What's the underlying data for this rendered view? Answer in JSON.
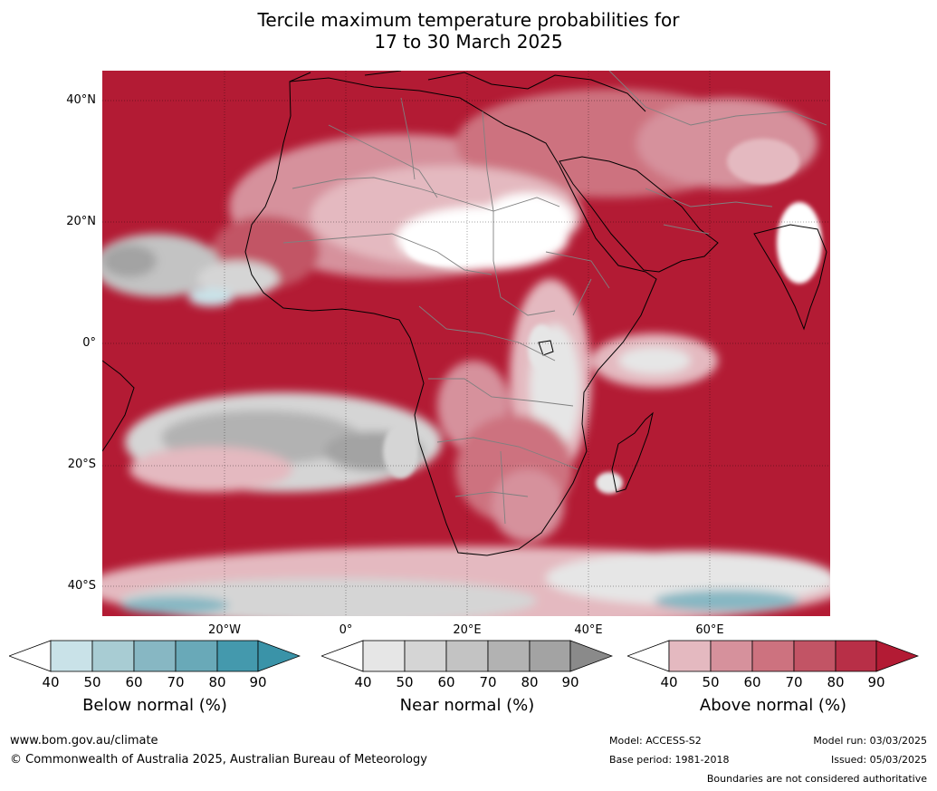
{
  "title": {
    "line1": "Tercile maximum temperature probabilities for",
    "line2": "17 to 30 March 2025"
  },
  "map": {
    "lat_labels": [
      "40°N",
      "20°N",
      "0°",
      "20°S",
      "40°S"
    ],
    "lon_labels": [
      "20°W",
      "0°",
      "20°E",
      "40°E",
      "60°E"
    ],
    "ocean_color": "#b31b34",
    "land_outline_color": "#000000",
    "border_color": "#808080"
  },
  "colorbars": [
    {
      "title": "Below normal (%)",
      "ticks": [
        "40",
        "50",
        "60",
        "70",
        "80",
        "90"
      ],
      "colors": [
        "#c9e2e8",
        "#a8ccd3",
        "#87b7c3",
        "#69a9b8",
        "#4499ad",
        "#3a93a8"
      ]
    },
    {
      "title": "Near normal (%)",
      "ticks": [
        "40",
        "50",
        "60",
        "70",
        "80",
        "90"
      ],
      "colors": [
        "#e6e6e6",
        "#d5d5d5",
        "#c3c3c3",
        "#b2b2b2",
        "#a3a3a3",
        "#8a8a8a"
      ]
    },
    {
      "title": "Above normal (%)",
      "ticks": [
        "40",
        "50",
        "60",
        "70",
        "80",
        "90"
      ],
      "colors": [
        "#e4b9c0",
        "#d6919c",
        "#cd727f",
        "#c25465",
        "#b82f47",
        "#b31b34"
      ]
    }
  ],
  "footer": {
    "website": "www.bom.gov.au/climate",
    "copyright": "© Commonwealth of Australia 2025, Australian Bureau of Meteorology",
    "model": "Model: ACCESS-S2",
    "base_period": "Base period: 1981-2018",
    "model_run": "Model run: 03/03/2025",
    "issued": "Issued: 05/03/2025",
    "disclaimer": "Boundaries are not considered authoritative"
  }
}
